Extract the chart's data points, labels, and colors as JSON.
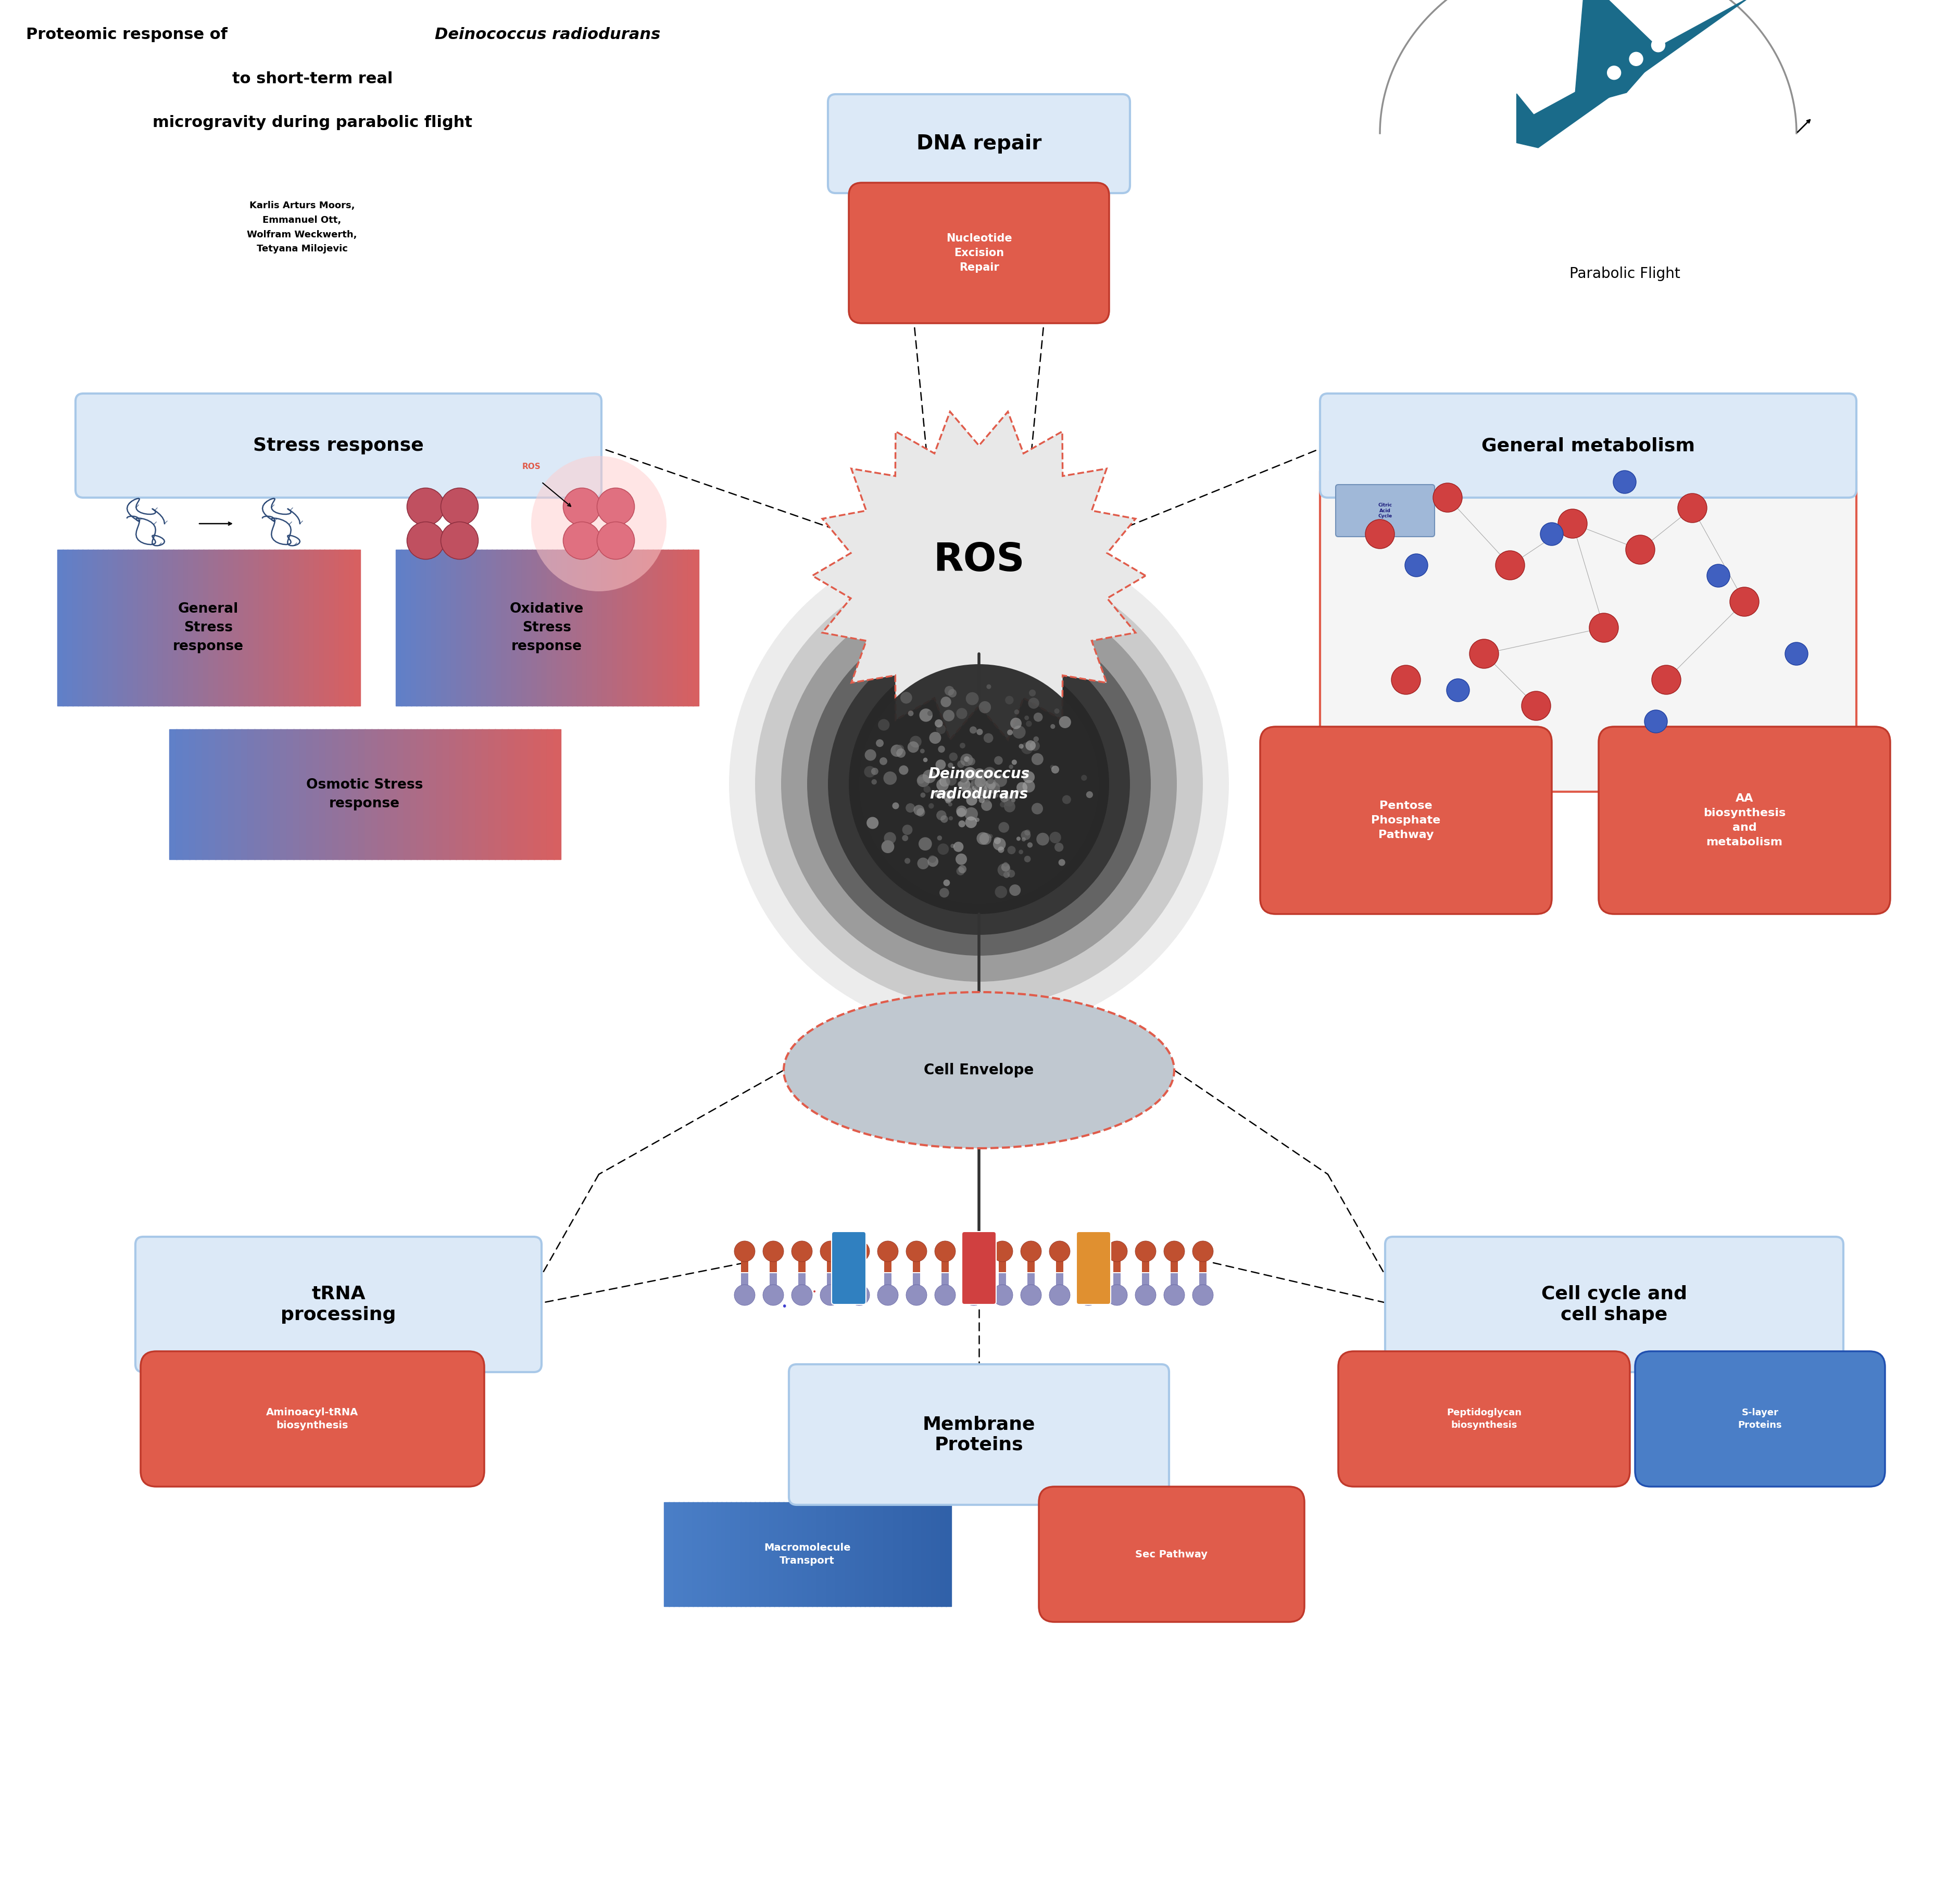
{
  "bg_color": "#ffffff",
  "light_blue_header_bg": "#dce9f7",
  "light_blue_header_border": "#a8c8e8",
  "red_box_bg": "#e05c4b",
  "red_box_border": "#c0392b",
  "gradient_box_left": "#6080c8",
  "gradient_box_right": "#d95f5f",
  "blue_box_bg": "#4a7ec7",
  "cell_envelope_fill": "#c0c8d0",
  "cell_envelope_border": "#e05c4b",
  "title_normal": "Proteomic response of ",
  "title_italic": "Deinococcus radiodurans",
  "title_line2": "to short-term real",
  "title_line3": "microgravity during parabolic flight",
  "authors": "Karlis Arturs Moors,\nEmmanuel Ott,\nWolfram Weckwerth,\nTetyana Milojevic",
  "parabolic_label": "Parabolic Flight",
  "dna_repair_label": "DNA repair",
  "nucleotide_excision": "Nucleotide\nExcision\nRepair",
  "stress_response_label": "Stress response",
  "ros_label": "ROS",
  "ros_small_label": "ROS",
  "general_stress": "General\nStress\nresponse",
  "oxidative_stress": "Oxidative\nStress\nresponse",
  "osmotic_stress": "Osmotic Stress\nresponse",
  "general_metabolism_label": "General metabolism",
  "pentose_phosphate": "Pentose\nPhosphate\nPathway",
  "aa_biosynthesis": "AA\nbiosynthesis\nand\nmetabolism",
  "cell_envelope_label": "Cell Envelope",
  "deinococcus_label": "Deinococcus\nradiodurans",
  "trna_processing_label": "tRNA\nprocessing",
  "aminoacyl": "Aminoacyl-tRNA\nbiosynthesis",
  "membrane_proteins_label": "Membrane\nProteins",
  "macromolecule_transport": "Macromolecule\nTransport",
  "sec_pathway": "Sec Pathway",
  "cell_cycle_label": "Cell cycle and\ncell shape",
  "peptidoglycan": "Peptidoglycan\nbiosynthesis",
  "s_layer": "S-layer\nProteins",
  "citric_acid": "Citric\nAcid\nCycle"
}
